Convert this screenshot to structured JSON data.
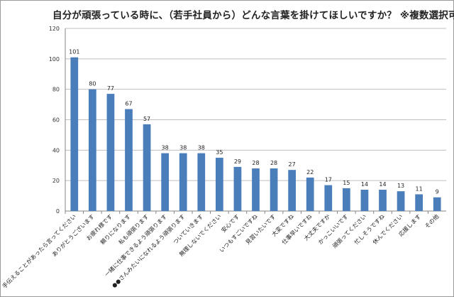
{
  "chart_data": {
    "type": "bar",
    "title": "自分が頑張っている時に、（若手社員から）どんな言葉を掛けてほしいですか？ ※複数選択可",
    "xlabel": "",
    "ylabel": "",
    "ylim": [
      0,
      120
    ],
    "yticks": [
      0,
      20,
      40,
      60,
      80,
      100,
      120
    ],
    "grid": true,
    "legend": "none",
    "bar_color": "#4a7ebb",
    "categories": [
      "手伝えることがあったら言ってください",
      "ありがとうございます",
      "お疲れ様です",
      "頼りになります",
      "私も頑張ります",
      "一緒に仕事できるよう頑張ります",
      "●●さんみたいになれるよう頑張ります",
      "ついていきます",
      "無理しないでください",
      "安心です",
      "いつもすごいですね",
      "見習いたいです",
      "大変ですね",
      "仕事早いですね",
      "大丈夫ですか",
      "かっこいいです",
      "頑張ってください",
      "忙しそうですね",
      "休んでください",
      "応援します",
      "その他"
    ],
    "values": [
      101,
      80,
      77,
      67,
      57,
      38,
      38,
      38,
      35,
      29,
      28,
      28,
      27,
      22,
      17,
      15,
      14,
      14,
      13,
      11,
      9
    ]
  }
}
